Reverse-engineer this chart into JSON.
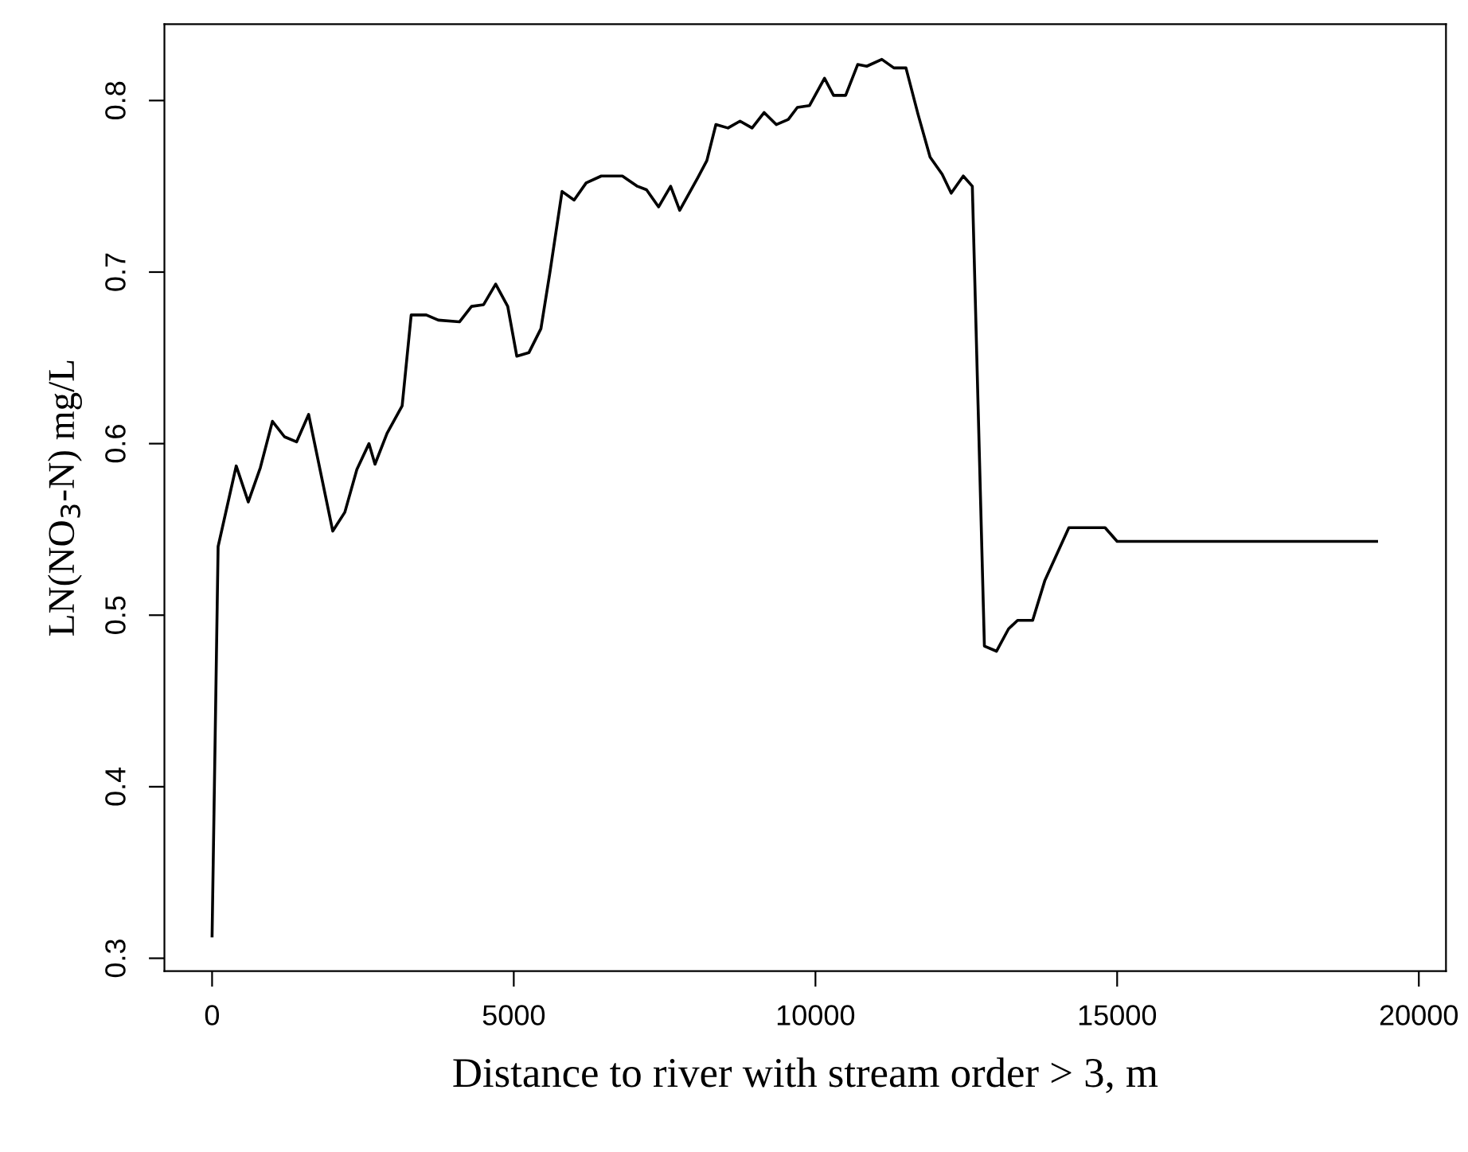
{
  "chart_data": {
    "type": "line",
    "xlabel": "Distance to river with stream order > 3, m",
    "ylabel": "LN(NO$_{3}$-N) mg/L",
    "xlim": [
      -790,
      20450
    ],
    "ylim": [
      0.2925,
      0.8445
    ],
    "xticks": [
      0,
      5000,
      10000,
      15000,
      20000
    ],
    "yticks": [
      0.3,
      0.4,
      0.5,
      0.6,
      0.7,
      0.8
    ],
    "grid": false,
    "marker": "none",
    "line_style": "solid",
    "series": [
      {
        "color": "#000000",
        "x": [
          0,
          100,
          400,
          600,
          800,
          1000,
          1200,
          1400,
          1600,
          2000,
          2200,
          2400,
          2600,
          2700,
          2900,
          3150,
          3300,
          3550,
          3750,
          4100,
          4300,
          4500,
          4700,
          4900,
          5050,
          5250,
          5450,
          5600,
          5800,
          6000,
          6200,
          6450,
          6800,
          7050,
          7200,
          7400,
          7600,
          7750,
          8050,
          8200,
          8350,
          8550,
          8750,
          8950,
          9150,
          9350,
          9550,
          9700,
          9900,
          10150,
          10300,
          10500,
          10700,
          10850,
          11100,
          11300,
          11500,
          11700,
          11900,
          12100,
          12250,
          12450,
          12600,
          12800,
          13000,
          13200,
          13350,
          13600,
          13800,
          14200,
          14800,
          15000,
          19300
        ],
        "values": [
          0.313,
          0.54,
          0.587,
          0.566,
          0.586,
          0.613,
          0.604,
          0.601,
          0.617,
          0.549,
          0.56,
          0.585,
          0.6,
          0.588,
          0.606,
          0.622,
          0.675,
          0.675,
          0.672,
          0.671,
          0.68,
          0.681,
          0.693,
          0.68,
          0.651,
          0.653,
          0.667,
          0.7,
          0.747,
          0.742,
          0.752,
          0.756,
          0.756,
          0.75,
          0.748,
          0.738,
          0.75,
          0.736,
          0.755,
          0.765,
          0.786,
          0.784,
          0.788,
          0.784,
          0.793,
          0.786,
          0.789,
          0.796,
          0.797,
          0.813,
          0.803,
          0.803,
          0.821,
          0.82,
          0.824,
          0.819,
          0.819,
          0.792,
          0.767,
          0.757,
          0.746,
          0.756,
          0.75,
          0.482,
          0.479,
          0.492,
          0.497,
          0.497,
          0.52,
          0.551,
          0.551,
          0.543,
          0.543
        ]
      }
    ]
  }
}
